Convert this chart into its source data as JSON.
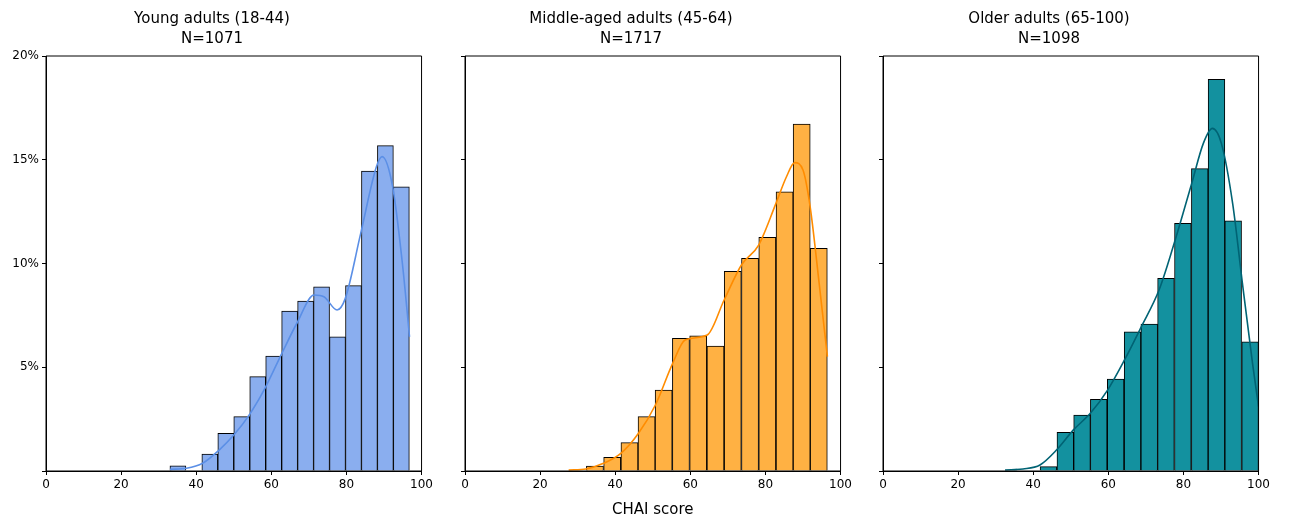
{
  "chart_data": [
    {
      "type": "histogram",
      "title": "Young adults (18-44)",
      "subtitle": "N=1071",
      "xlim": [
        0,
        100
      ],
      "xticks": [
        0,
        20,
        40,
        60,
        80,
        100
      ],
      "ylim": [
        0,
        20
      ],
      "yticks": [
        {
          "value": 0,
          "label": null
        },
        {
          "value": 5,
          "label": "5%"
        },
        {
          "value": 10,
          "label": "10%"
        },
        {
          "value": 15,
          "label": "15%"
        },
        {
          "value": 20,
          "label": "20%"
        }
      ],
      "grid": false,
      "legend": false,
      "series": [
        {
          "type": "histogram",
          "color": "#8aaeef",
          "bins": [
            33,
            37.25,
            41.5,
            45.75,
            50,
            54.25,
            58.5,
            62.75,
            67,
            71.25,
            75.5,
            79.75,
            84,
            88.25,
            92.5,
            96.75
          ],
          "values": [
            0.25,
            0,
            0.82,
            1.82,
            2.62,
            4.55,
            5.54,
            7.71,
            8.19,
            8.88,
            6.47,
            8.93,
            14.46,
            15.68,
            13.7
          ]
        },
        {
          "type": "line",
          "color": "#5b8fe6",
          "x": [
            33,
            37.4,
            41.7,
            46.1,
            50,
            54.4,
            58.5,
            62.8,
            66.8,
            71.4,
            74,
            77.5,
            79.7,
            83.8,
            88,
            89.5,
            92.3,
            94.9,
            96.8
          ],
          "values": [
            0.08,
            0.13,
            0.37,
            1.01,
            1.73,
            2.78,
            4.06,
            5.67,
            7.12,
            8.48,
            8.4,
            7.76,
            8.32,
            11.45,
            14.67,
            15.15,
            13.7,
            10,
            6.47
          ]
        }
      ]
    },
    {
      "type": "histogram",
      "title": "Middle-aged adults (45-64)",
      "subtitle": "N=1717",
      "xlabel": "CHAI score",
      "xlim": [
        0,
        100
      ],
      "xticks": [
        0,
        20,
        40,
        60,
        80,
        100
      ],
      "ylim": [
        0,
        20
      ],
      "yticks": [
        {
          "value": 0,
          "label": null
        },
        {
          "value": 5,
          "label": null
        },
        {
          "value": 10,
          "label": null
        },
        {
          "value": 15,
          "label": null
        },
        {
          "value": 20,
          "label": null
        }
      ],
      "tick_labels": "x",
      "grid": false,
      "legend": false,
      "series": [
        {
          "type": "histogram",
          "color": "#ffb143",
          "bins": [
            32.3,
            36.9,
            41.5,
            46.1,
            50.6,
            55.2,
            59.8,
            64.4,
            69,
            73.6,
            78.2,
            82.8,
            87.4,
            91.9,
            96.5
          ],
          "values": [
            0.24,
            0.66,
            1.37,
            2.62,
            3.9,
            6.39,
            6.51,
            6.02,
            9.62,
            10.25,
            11.26,
            13.46,
            16.72,
            10.73
          ]
        },
        {
          "type": "line",
          "color": "#ff8c00",
          "x": [
            27.6,
            32.2,
            36.9,
            41.5,
            46.2,
            50.7,
            55.3,
            58.6,
            64.5,
            69,
            73.6,
            78.2,
            82.8,
            85.6,
            87.8,
            90,
            91.9,
            94.3,
            96.5
          ],
          "values": [
            0.05,
            0.1,
            0.37,
            0.85,
            1.82,
            3.18,
            5.19,
            6.31,
            6.55,
            8.24,
            9.93,
            10.89,
            12.9,
            14.18,
            14.86,
            14.51,
            12.74,
            9.05,
            5.51
          ]
        }
      ]
    },
    {
      "type": "histogram",
      "title": "Older adults (65-100)",
      "subtitle": "N=1098",
      "xlim": [
        0,
        100
      ],
      "xticks": [
        0,
        20,
        40,
        60,
        80,
        100
      ],
      "ylim": [
        0,
        20
      ],
      "yticks": [
        {
          "value": 0,
          "label": null
        },
        {
          "value": 5,
          "label": null
        },
        {
          "value": 10,
          "label": null
        },
        {
          "value": 15,
          "label": null
        },
        {
          "value": 20,
          "label": null
        }
      ],
      "tick_labels": "x",
      "grid": false,
      "legend": false,
      "series": [
        {
          "type": "histogram",
          "color": "#13919f",
          "bins": [
            41.8,
            46.3,
            50.8,
            55.2,
            59.7,
            64.2,
            68.7,
            73.1,
            77.6,
            82.1,
            86.6,
            91,
            95.5,
            100
          ],
          "values": [
            0.21,
            1.86,
            2.7,
            3.45,
            4.43,
            6.71,
            7.08,
            9.28,
            11.93,
            14.57,
            18.87,
            12.06,
            6.23
          ]
        },
        {
          "type": "line",
          "color": "#006374",
          "x": [
            32.5,
            37.3,
            41.8,
            46.2,
            50.7,
            55.2,
            59.8,
            64.3,
            68.8,
            73.5,
            77.8,
            82.2,
            85.3,
            87.7,
            90.1,
            93.1,
            95.7,
            98.4,
            100
          ],
          "values": [
            0.05,
            0.1,
            0.29,
            1.01,
            1.98,
            2.78,
            3.9,
            5.35,
            6.96,
            8.72,
            11.13,
            13.86,
            15.79,
            16.51,
            15.79,
            12.9,
            9.05,
            5.19,
            3.1
          ]
        }
      ]
    }
  ]
}
